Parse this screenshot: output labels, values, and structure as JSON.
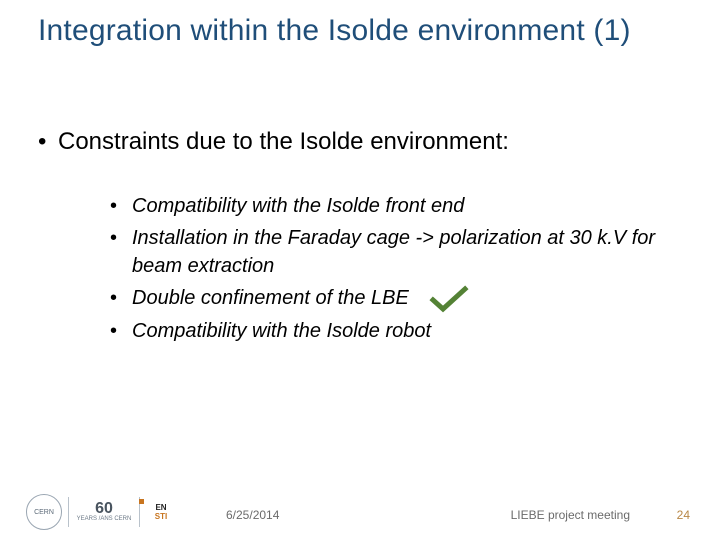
{
  "colors": {
    "title": "#1f4e79",
    "body": "#000000",
    "sub": "#000000",
    "check_stroke": "#548235",
    "footer_text": "#6b6b6b",
    "page_num": "#b88746"
  },
  "title": "Integration within the Isolde environment (1)",
  "level1": {
    "bullet": "•",
    "text": "Constraints due to the Isolde environment:"
  },
  "subitems": [
    {
      "bullet": "•",
      "text": "Compatibility with the Isolde front end",
      "check": false
    },
    {
      "bullet": "•",
      "text": "Installation in the Faraday cage -> polarization at 30 k.V for beam extraction",
      "check": false
    },
    {
      "bullet": "•",
      "text": "Double confinement of the LBE",
      "check": true
    },
    {
      "bullet": "•",
      "text": "Compatibility with the Isolde robot",
      "check": false
    }
  ],
  "footer": {
    "date": "6/25/2014",
    "meeting": "LIEBE project meeting",
    "page": "24",
    "anniversary_top": "60",
    "anniversary_bottom": "YEARS /ANS CERN",
    "sti_top": "EN",
    "sti_bottom": "STI"
  }
}
